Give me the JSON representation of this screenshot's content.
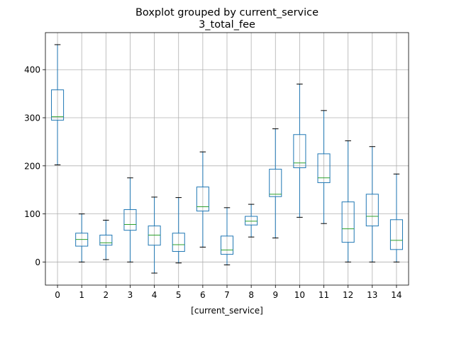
{
  "chart_data": {
    "type": "box",
    "title": "Boxplot grouped by current_service",
    "subtitle": "3_total_fee",
    "xlabel": "[current_service]",
    "ylabel": "",
    "ylim": [
      -48,
      477
    ],
    "yticks": [
      0,
      100,
      200,
      300,
      400
    ],
    "grid": true,
    "categories": [
      "0",
      "1",
      "2",
      "3",
      "4",
      "5",
      "6",
      "7",
      "8",
      "9",
      "10",
      "11",
      "12",
      "13",
      "14"
    ],
    "boxes": [
      {
        "whisker_low": 202,
        "q1": 295,
        "median": 302,
        "q3": 358,
        "whisker_high": 452
      },
      {
        "whisker_low": 0,
        "q1": 33,
        "median": 47,
        "q3": 60,
        "whisker_high": 100
      },
      {
        "whisker_low": 5,
        "q1": 35,
        "median": 40,
        "q3": 56,
        "whisker_high": 87
      },
      {
        "whisker_low": 0,
        "q1": 66,
        "median": 78,
        "q3": 109,
        "whisker_high": 175
      },
      {
        "whisker_low": -23,
        "q1": 35,
        "median": 56,
        "q3": 75,
        "whisker_high": 135
      },
      {
        "whisker_low": -2,
        "q1": 22,
        "median": 36,
        "q3": 60,
        "whisker_high": 134
      },
      {
        "whisker_low": 31,
        "q1": 106,
        "median": 115,
        "q3": 156,
        "whisker_high": 229
      },
      {
        "whisker_low": -6,
        "q1": 16,
        "median": 25,
        "q3": 54,
        "whisker_high": 113
      },
      {
        "whisker_low": 52,
        "q1": 77,
        "median": 85,
        "q3": 95,
        "whisker_high": 120
      },
      {
        "whisker_low": 50,
        "q1": 136,
        "median": 141,
        "q3": 193,
        "whisker_high": 277
      },
      {
        "whisker_low": 93,
        "q1": 196,
        "median": 206,
        "q3": 265,
        "whisker_high": 370
      },
      {
        "whisker_low": 80,
        "q1": 165,
        "median": 175,
        "q3": 225,
        "whisker_high": 315
      },
      {
        "whisker_low": 0,
        "q1": 41,
        "median": 69,
        "q3": 125,
        "whisker_high": 252
      },
      {
        "whisker_low": 0,
        "q1": 75,
        "median": 95,
        "q3": 141,
        "whisker_high": 240
      },
      {
        "whisker_low": 0,
        "q1": 26,
        "median": 45,
        "q3": 88,
        "whisker_high": 183
      }
    ],
    "colors": {
      "box": "#1f77b4",
      "median": "#2ca02c",
      "cap": "#000000",
      "grid": "#b0b0b0",
      "axes": "#000000"
    }
  }
}
